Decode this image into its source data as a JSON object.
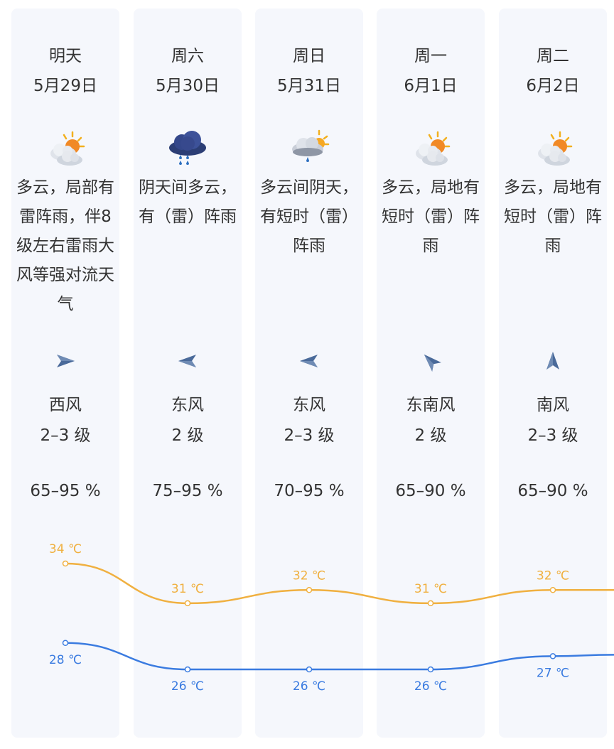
{
  "days": [
    {
      "day": "明天",
      "date": "5月29日",
      "icon": "partly-cloudy-sun-icon",
      "desc": "多云，局部有雷阵雨，伴8级左右雷雨大风等强对流天气",
      "wind_arrow": "east-arrow-icon",
      "wind_dir": "西风",
      "wind_level": "2–3 级",
      "humidity": "65–95 %",
      "high": "34 ℃",
      "low": "28 ℃"
    },
    {
      "day": "周六",
      "date": "5月30日",
      "icon": "rain-cloud-icon",
      "desc": "阴天间多云，有（雷）阵雨",
      "wind_arrow": "west-arrow-icon",
      "wind_dir": "东风",
      "wind_level": "2 级",
      "humidity": "75–95 %",
      "high": "31 ℃",
      "low": "26 ℃"
    },
    {
      "day": "周日",
      "date": "5月31日",
      "icon": "cloudy-sun-rain-icon",
      "desc": "多云间阴天，有短时（雷）阵雨",
      "wind_arrow": "west-arrow-icon",
      "wind_dir": "东风",
      "wind_level": "2–3 级",
      "humidity": "70–95 %",
      "high": "32 ℃",
      "low": "26 ℃"
    },
    {
      "day": "周一",
      "date": "6月1日",
      "icon": "partly-cloudy-sun-icon",
      "desc": "多云，局地有短时（雷）阵雨",
      "wind_arrow": "northwest-arrow-icon",
      "wind_dir": "东南风",
      "wind_level": "2 级",
      "humidity": "65–90 %",
      "high": "31 ℃",
      "low": "26 ℃"
    },
    {
      "day": "周二",
      "date": "6月2日",
      "icon": "partly-cloudy-sun-icon",
      "desc": "多云，局地有短时（雷）阵雨",
      "wind_arrow": "north-arrow-icon",
      "wind_dir": "南风",
      "wind_level": "2–3 级",
      "humidity": "65–90 %",
      "high": "32 ℃",
      "low": "27 ℃"
    }
  ],
  "chart_data": {
    "type": "line",
    "categories": [
      "5月29日",
      "5月30日",
      "5月31日",
      "6月1日",
      "6月2日"
    ],
    "series": [
      {
        "values": [
          34,
          31,
          32,
          31,
          32
        ],
        "color": "#f0b040"
      },
      {
        "values": [
          28,
          26,
          26,
          26,
          27
        ],
        "color": "#3a7be0"
      }
    ],
    "unit": "℃"
  },
  "colors": {
    "card_bg": "#f5f7fc",
    "text": "#333333",
    "high_line": "#f0b040",
    "low_line": "#3a7be0",
    "wind_arrow": "#4a6a9a"
  }
}
